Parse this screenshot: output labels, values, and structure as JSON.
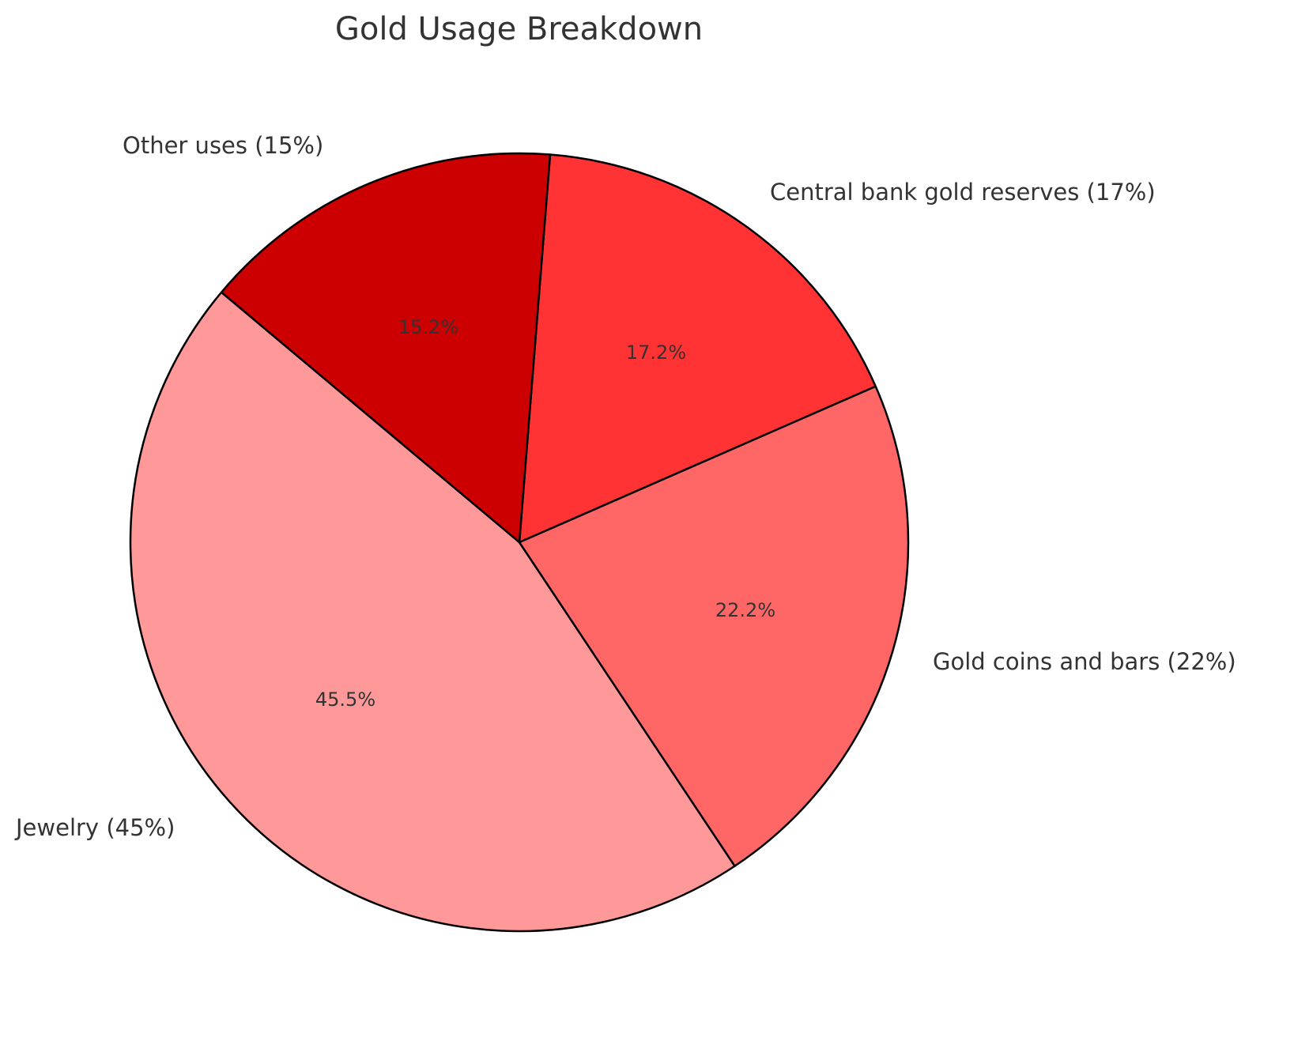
{
  "chart_data": {
    "type": "pie",
    "title": "Gold Usage Breakdown",
    "categories": [
      "Jewelry (45%)",
      "Gold coins and bars (22%)",
      "Central bank gold reserves (17%)",
      "Other uses (15%)"
    ],
    "values": [
      45,
      22,
      17,
      15
    ],
    "percent_labels": [
      "45.5%",
      "22.2%",
      "17.2%",
      "15.2%"
    ],
    "colors": [
      "#ff9999",
      "#ff6666",
      "#ff3333",
      "#cc0000"
    ],
    "start_angle_deg": 140,
    "direction": "counterclockwise",
    "edge_color": "#000000",
    "legend": "none",
    "xlabel": "",
    "ylabel": ""
  },
  "title": "Gold Usage Breakdown",
  "slices": [
    {
      "label": "Jewelry (45%)",
      "pct": "45.5%",
      "color": "#ff9999"
    },
    {
      "label": "Gold coins and bars (22%)",
      "pct": "22.2%",
      "color": "#ff6666"
    },
    {
      "label": "Central bank gold reserves (17%)",
      "pct": "17.2%",
      "color": "#ff3333"
    },
    {
      "label": "Other uses (15%)",
      "pct": "15.2%",
      "color": "#cc0000"
    }
  ]
}
